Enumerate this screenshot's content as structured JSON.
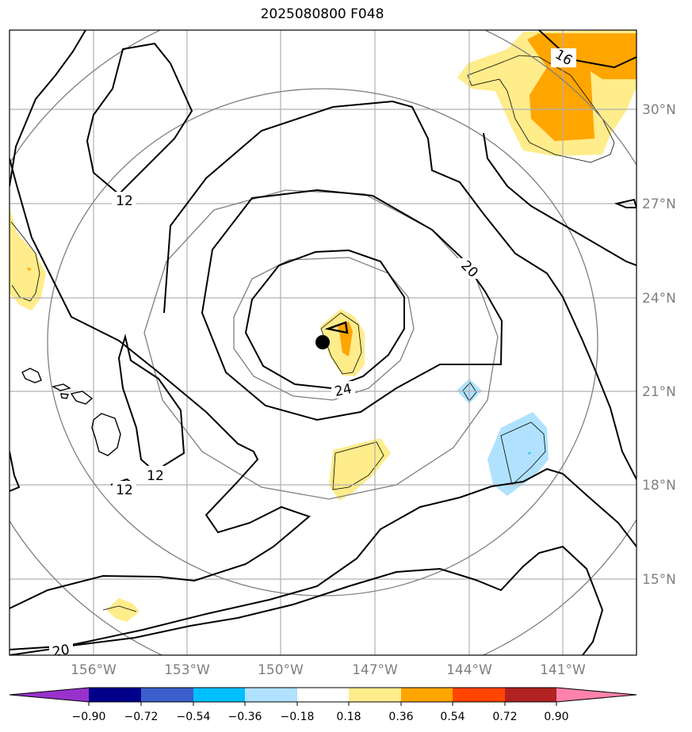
{
  "title": "2025080800 F048",
  "map": {
    "lon_ticks": [
      "156°W",
      "153°W",
      "150°W",
      "147°W",
      "144°W",
      "141°W"
    ],
    "lat_ticks": [
      "30°N",
      "27°N",
      "24°N",
      "21°N",
      "18°N",
      "15°N"
    ],
    "contour_labels": [
      "12",
      "12",
      "12",
      "16",
      "20",
      "20",
      "24"
    ],
    "storm_center": {
      "lon": -148.2,
      "lat": 22.6
    },
    "gridline_color": "#b0b0b0",
    "coast_color": "#000000"
  },
  "colorbar": {
    "ticks": [
      "−0.90",
      "−0.72",
      "−0.54",
      "−0.36",
      "−0.18",
      "0.18",
      "0.36",
      "0.54",
      "0.72",
      "0.90"
    ],
    "colors": [
      "#9932cc",
      "#00008b",
      "#3a5fcd",
      "#00bfff",
      "#b0e2ff",
      "#ffffff",
      "#ffec8b",
      "#ffa500",
      "#ff4500",
      "#b22222",
      "#ff82ab"
    ]
  }
}
